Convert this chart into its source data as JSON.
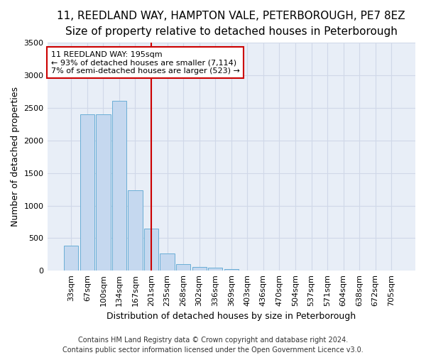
{
  "title_line1": "11, REEDLAND WAY, HAMPTON VALE, PETERBOROUGH, PE7 8EZ",
  "title_line2": "Size of property relative to detached houses in Peterborough",
  "xlabel": "Distribution of detached houses by size in Peterborough",
  "ylabel": "Number of detached properties",
  "footer_line1": "Contains HM Land Registry data © Crown copyright and database right 2024.",
  "footer_line2": "Contains public sector information licensed under the Open Government Licence v3.0.",
  "annotation_line1": "11 REEDLAND WAY: 195sqm",
  "annotation_line2": "← 93% of detached houses are smaller (7,114)",
  "annotation_line3": "7% of semi-detached houses are larger (523) →",
  "categories": [
    "33sqm",
    "67sqm",
    "100sqm",
    "134sqm",
    "167sqm",
    "201sqm",
    "235sqm",
    "268sqm",
    "302sqm",
    "336sqm",
    "369sqm",
    "403sqm",
    "436sqm",
    "470sqm",
    "504sqm",
    "537sqm",
    "571sqm",
    "604sqm",
    "638sqm",
    "672sqm",
    "705sqm"
  ],
  "values": [
    390,
    2400,
    2400,
    2610,
    1240,
    650,
    260,
    100,
    60,
    45,
    30,
    0,
    0,
    0,
    0,
    0,
    0,
    0,
    0,
    0,
    0
  ],
  "vline_index": 5,
  "bar_color": "#c5d8ef",
  "bar_edge_color": "#6aaed6",
  "bar_width": 0.9,
  "ylim": [
    0,
    3500
  ],
  "yticks": [
    0,
    500,
    1000,
    1500,
    2000,
    2500,
    3000,
    3500
  ],
  "grid_color": "#d0d8e8",
  "bg_color": "#e8eef7",
  "annotation_box_color": "#cc0000",
  "vline_color": "#cc0000",
  "title_fontsize": 11,
  "subtitle_fontsize": 9.5,
  "axis_label_fontsize": 9,
  "tick_fontsize": 8,
  "annotation_fontsize": 8,
  "footer_fontsize": 7
}
